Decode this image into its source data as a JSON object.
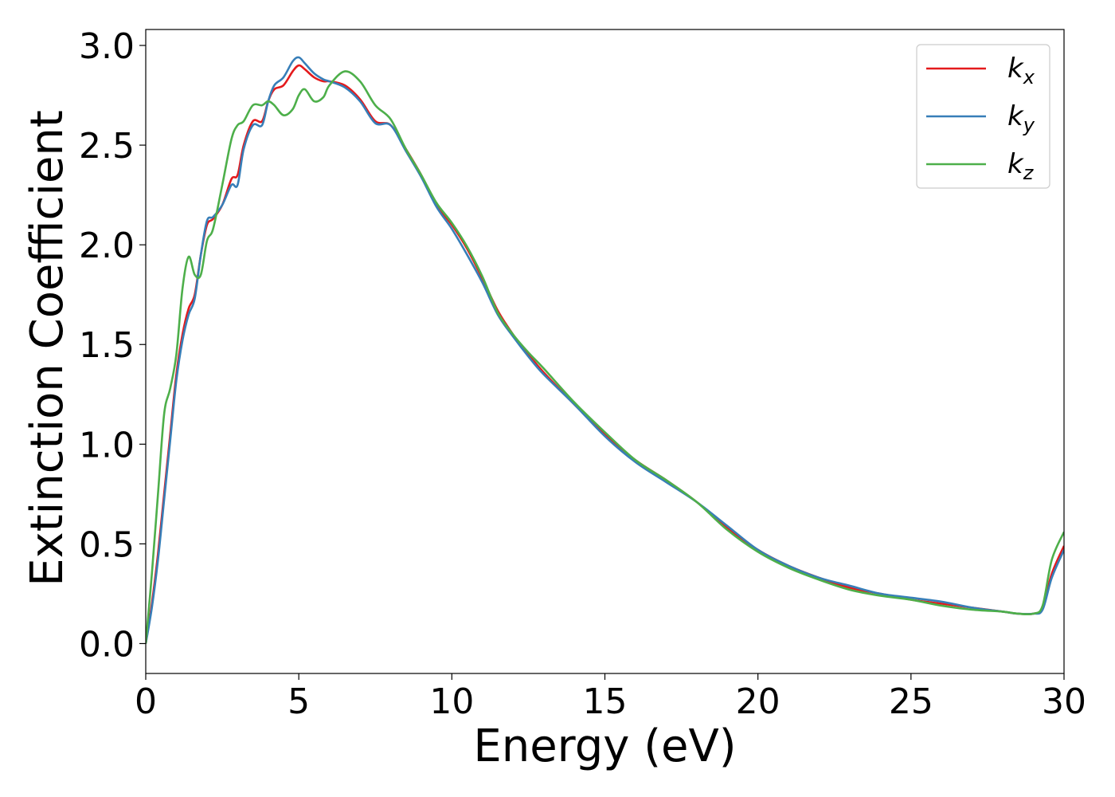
{
  "chart_data": {
    "type": "line",
    "xlabel": "Energy (eV)",
    "ylabel": "Extinction Coefficient",
    "xlim": [
      0,
      30
    ],
    "ylim": [
      -0.15,
      3.08
    ],
    "xticks": [
      0,
      5,
      10,
      15,
      20,
      25,
      30
    ],
    "xtick_labels": [
      "0",
      "5",
      "10",
      "15",
      "20",
      "25",
      "30"
    ],
    "yticks": [
      0.0,
      0.5,
      1.0,
      1.5,
      2.0,
      2.5,
      3.0
    ],
    "ytick_labels": [
      "0.0",
      "0.5",
      "1.0",
      "1.5",
      "2.0",
      "2.5",
      "3.0"
    ],
    "grid": false,
    "legend": {
      "position": "top-right",
      "entries": [
        {
          "base": "k",
          "sub": "x",
          "color": "#e41a1c"
        },
        {
          "base": "k",
          "sub": "y",
          "color": "#377eb8"
        },
        {
          "base": "k",
          "sub": "z",
          "color": "#4daf4a"
        }
      ]
    },
    "series": [
      {
        "name": "kx",
        "color": "#e41a1c",
        "x": [
          0,
          0.2,
          0.4,
          0.6,
          0.8,
          1.0,
          1.2,
          1.4,
          1.6,
          1.8,
          2.0,
          2.2,
          2.5,
          2.8,
          3.0,
          3.2,
          3.5,
          3.8,
          4.0,
          4.2,
          4.5,
          4.8,
          5.0,
          5.2,
          5.5,
          5.8,
          6.0,
          6.5,
          7.0,
          7.5,
          8.0,
          8.5,
          9.0,
          9.5,
          10.0,
          10.5,
          11.0,
          11.5,
          12.0,
          12.5,
          13.0,
          14.0,
          15.0,
          16.0,
          17.0,
          18.0,
          19.0,
          20.0,
          21.0,
          22.0,
          23.0,
          24.0,
          25.0,
          26.0,
          27.0,
          28.0,
          28.5,
          29.0,
          29.3,
          29.6,
          30.0
        ],
        "values": [
          0.0,
          0.2,
          0.45,
          0.75,
          1.05,
          1.35,
          1.55,
          1.68,
          1.75,
          1.95,
          2.1,
          2.13,
          2.2,
          2.33,
          2.35,
          2.5,
          2.62,
          2.62,
          2.72,
          2.78,
          2.8,
          2.87,
          2.9,
          2.88,
          2.84,
          2.82,
          2.82,
          2.8,
          2.73,
          2.62,
          2.6,
          2.48,
          2.35,
          2.2,
          2.1,
          1.98,
          1.83,
          1.67,
          1.55,
          1.45,
          1.36,
          1.2,
          1.05,
          0.92,
          0.82,
          0.71,
          0.58,
          0.47,
          0.39,
          0.33,
          0.28,
          0.25,
          0.22,
          0.2,
          0.18,
          0.16,
          0.15,
          0.15,
          0.18,
          0.35,
          0.49
        ]
      },
      {
        "name": "ky",
        "color": "#377eb8",
        "x": [
          0,
          0.2,
          0.4,
          0.6,
          0.8,
          1.0,
          1.2,
          1.4,
          1.6,
          1.8,
          2.0,
          2.2,
          2.5,
          2.8,
          3.0,
          3.2,
          3.5,
          3.8,
          4.0,
          4.2,
          4.5,
          4.8,
          5.0,
          5.2,
          5.5,
          5.8,
          6.0,
          6.5,
          7.0,
          7.5,
          8.0,
          8.5,
          9.0,
          9.5,
          10.0,
          10.5,
          11.0,
          11.5,
          12.0,
          12.5,
          13.0,
          14.0,
          15.0,
          16.0,
          17.0,
          18.0,
          19.0,
          20.0,
          21.0,
          22.0,
          23.0,
          24.0,
          25.0,
          26.0,
          27.0,
          28.0,
          28.5,
          29.0,
          29.3,
          29.6,
          30.0
        ],
        "values": [
          0.0,
          0.18,
          0.42,
          0.72,
          1.02,
          1.32,
          1.52,
          1.65,
          1.73,
          1.95,
          2.12,
          2.14,
          2.2,
          2.3,
          2.3,
          2.48,
          2.6,
          2.6,
          2.72,
          2.8,
          2.84,
          2.92,
          2.94,
          2.91,
          2.86,
          2.83,
          2.82,
          2.79,
          2.72,
          2.61,
          2.6,
          2.47,
          2.34,
          2.19,
          2.08,
          1.95,
          1.81,
          1.65,
          1.54,
          1.44,
          1.35,
          1.2,
          1.04,
          0.91,
          0.81,
          0.71,
          0.59,
          0.47,
          0.39,
          0.33,
          0.29,
          0.25,
          0.23,
          0.21,
          0.18,
          0.16,
          0.15,
          0.15,
          0.17,
          0.33,
          0.47
        ]
      },
      {
        "name": "kz",
        "color": "#4daf4a",
        "x": [
          0,
          0.2,
          0.4,
          0.6,
          0.8,
          1.0,
          1.2,
          1.4,
          1.6,
          1.8,
          2.0,
          2.2,
          2.5,
          2.8,
          3.0,
          3.2,
          3.5,
          3.8,
          4.0,
          4.2,
          4.5,
          4.8,
          5.0,
          5.2,
          5.5,
          5.8,
          6.0,
          6.5,
          7.0,
          7.5,
          8.0,
          8.5,
          9.0,
          9.5,
          10.0,
          10.5,
          11.0,
          11.5,
          12.0,
          12.5,
          13.0,
          14.0,
          15.0,
          16.0,
          17.0,
          18.0,
          19.0,
          20.0,
          21.0,
          22.0,
          23.0,
          24.0,
          25.0,
          26.0,
          27.0,
          28.0,
          28.5,
          29.0,
          29.3,
          29.6,
          30.0
        ],
        "values": [
          0.0,
          0.35,
          0.75,
          1.15,
          1.28,
          1.45,
          1.78,
          1.94,
          1.85,
          1.85,
          2.02,
          2.08,
          2.3,
          2.53,
          2.6,
          2.62,
          2.7,
          2.7,
          2.72,
          2.7,
          2.65,
          2.68,
          2.75,
          2.78,
          2.72,
          2.74,
          2.8,
          2.87,
          2.82,
          2.7,
          2.63,
          2.48,
          2.35,
          2.21,
          2.11,
          1.99,
          1.84,
          1.66,
          1.55,
          1.46,
          1.38,
          1.21,
          1.06,
          0.92,
          0.82,
          0.71,
          0.57,
          0.46,
          0.38,
          0.32,
          0.27,
          0.24,
          0.22,
          0.19,
          0.17,
          0.16,
          0.15,
          0.15,
          0.19,
          0.42,
          0.56
        ]
      }
    ]
  }
}
